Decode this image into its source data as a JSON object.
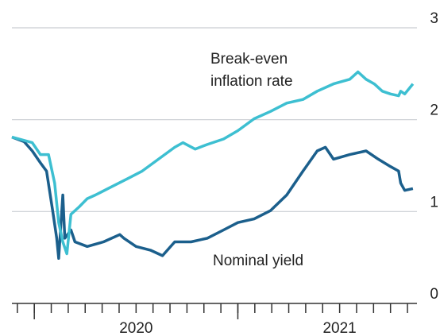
{
  "chart_data": {
    "type": "line",
    "annotations": [
      "Break-even",
      "inflation rate",
      "Nominal yield"
    ],
    "xlim": [
      2019.89,
      2021.88
    ],
    "xticks": [
      2020,
      2021
    ],
    "ylim": [
      0,
      3
    ],
    "yticks": [
      0,
      1,
      2,
      3
    ],
    "grid": true,
    "series": [
      {
        "name": "Nominal yield",
        "color": "#1b5f8c",
        "x": [
          2019.89,
          2019.95,
          2019.99,
          2020.03,
          2020.06,
          2020.09,
          2020.11,
          2020.12,
          2020.14,
          2020.15,
          2020.18,
          2020.2,
          2020.26,
          2020.34,
          2020.42,
          2020.44,
          2020.5,
          2020.57,
          2020.63,
          2020.69,
          2020.77,
          2020.85,
          2020.93,
          2021.0,
          2021.08,
          2021.16,
          2021.24,
          2021.32,
          2021.39,
          2021.43,
          2021.47,
          2021.55,
          2021.63,
          2021.69,
          2021.75,
          2021.79,
          2021.8,
          2021.82,
          2021.86
        ],
        "values": [
          1.81,
          1.76,
          1.66,
          1.53,
          1.44,
          1.01,
          0.71,
          0.49,
          1.18,
          0.71,
          0.8,
          0.67,
          0.62,
          0.67,
          0.75,
          0.71,
          0.62,
          0.58,
          0.52,
          0.67,
          0.67,
          0.71,
          0.8,
          0.88,
          0.92,
          1.01,
          1.18,
          1.44,
          1.66,
          1.7,
          1.57,
          1.62,
          1.66,
          1.57,
          1.49,
          1.44,
          1.31,
          1.23,
          1.25
        ]
      },
      {
        "name": "Break-even inflation rate",
        "color": "#3dbfd1",
        "x": [
          2019.89,
          2019.99,
          2020.03,
          2020.07,
          2020.1,
          2020.12,
          2020.14,
          2020.16,
          2020.18,
          2020.22,
          2020.26,
          2020.3,
          2020.38,
          2020.46,
          2020.53,
          2020.61,
          2020.69,
          2020.73,
          2020.79,
          2020.85,
          2020.93,
          2021.0,
          2021.08,
          2021.16,
          2021.24,
          2021.32,
          2021.39,
          2021.47,
          2021.55,
          2021.59,
          2021.63,
          2021.67,
          2021.71,
          2021.75,
          2021.79,
          2021.8,
          2021.82,
          2021.86
        ],
        "values": [
          1.81,
          1.75,
          1.62,
          1.62,
          1.31,
          0.88,
          0.67,
          0.54,
          0.97,
          1.05,
          1.14,
          1.18,
          1.27,
          1.36,
          1.44,
          1.57,
          1.7,
          1.75,
          1.68,
          1.73,
          1.79,
          1.88,
          2.01,
          2.09,
          2.18,
          2.22,
          2.31,
          2.39,
          2.44,
          2.52,
          2.44,
          2.39,
          2.31,
          2.28,
          2.26,
          2.31,
          2.28,
          2.39
        ]
      }
    ]
  }
}
